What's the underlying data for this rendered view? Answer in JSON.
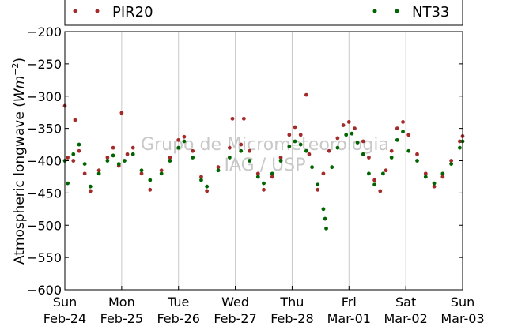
{
  "chart_data": {
    "type": "scatter",
    "title": "",
    "ylabel_prefix": "Atmospheric longwave (",
    "ylabel_unit": "Wm",
    "ylabel_exp": "−2",
    "ylabel_suffix": ")",
    "ylim": [
      -600,
      -200
    ],
    "yticks": [
      -600,
      -550,
      -500,
      -450,
      -400,
      -350,
      -300,
      -250,
      -200
    ],
    "ytick_labels": [
      "−600",
      "−550",
      "−500",
      "−450",
      "−400",
      "−350",
      "−300",
      "−250",
      "−200"
    ],
    "xlim": [
      0,
      7
    ],
    "xticks": [
      {
        "day": "Sun",
        "date": "Feb-24"
      },
      {
        "day": "Mon",
        "date": "Feb-25"
      },
      {
        "day": "Tue",
        "date": "Feb-26"
      },
      {
        "day": "Wed",
        "date": "Feb-27"
      },
      {
        "day": "Thu",
        "date": "Feb-28"
      },
      {
        "day": "Fri",
        "date": "Mar-01"
      },
      {
        "day": "Sat",
        "date": "Mar-02"
      },
      {
        "day": "Sun",
        "date": "Mar-03"
      }
    ],
    "grid": "vertical",
    "legend_placement": "top",
    "watermark": [
      "Grupo de Micrometeorologia",
      "IAG / USP"
    ],
    "series": [
      {
        "name": "PIR20",
        "color": "#a52a2a",
        "points": [
          [
            0.0,
            -315
          ],
          [
            0.05,
            -395
          ],
          [
            0.15,
            -400
          ],
          [
            0.18,
            -337
          ],
          [
            0.25,
            -385
          ],
          [
            0.35,
            -420
          ],
          [
            0.45,
            -447
          ],
          [
            0.6,
            -415
          ],
          [
            0.75,
            -395
          ],
          [
            0.85,
            -380
          ],
          [
            0.95,
            -408
          ],
          [
            1.0,
            -326
          ],
          [
            1.1,
            -390
          ],
          [
            1.2,
            -380
          ],
          [
            1.35,
            -420
          ],
          [
            1.5,
            -445
          ],
          [
            1.7,
            -415
          ],
          [
            1.85,
            -395
          ],
          [
            2.0,
            -368
          ],
          [
            2.1,
            -363
          ],
          [
            2.25,
            -385
          ],
          [
            2.4,
            -425
          ],
          [
            2.5,
            -447
          ],
          [
            2.7,
            -410
          ],
          [
            2.9,
            -380
          ],
          [
            2.95,
            -335
          ],
          [
            3.1,
            -375
          ],
          [
            3.15,
            -335
          ],
          [
            3.25,
            -385
          ],
          [
            3.4,
            -420
          ],
          [
            3.5,
            -445
          ],
          [
            3.65,
            -425
          ],
          [
            3.8,
            -395
          ],
          [
            3.95,
            -360
          ],
          [
            4.05,
            -348
          ],
          [
            4.15,
            -360
          ],
          [
            4.25,
            -298
          ],
          [
            4.3,
            -390
          ],
          [
            4.45,
            -445
          ],
          [
            4.55,
            -420
          ],
          [
            4.65,
            -385
          ],
          [
            4.8,
            -365
          ],
          [
            4.9,
            -345
          ],
          [
            5.0,
            -340
          ],
          [
            5.1,
            -350
          ],
          [
            5.25,
            -370
          ],
          [
            5.35,
            -395
          ],
          [
            5.45,
            -430
          ],
          [
            5.55,
            -447
          ],
          [
            5.65,
            -415
          ],
          [
            5.75,
            -385
          ],
          [
            5.85,
            -350
          ],
          [
            5.95,
            -340
          ],
          [
            6.05,
            -360
          ],
          [
            6.2,
            -390
          ],
          [
            6.35,
            -420
          ],
          [
            6.5,
            -440
          ],
          [
            6.65,
            -425
          ],
          [
            6.8,
            -400
          ],
          [
            6.95,
            -370
          ],
          [
            7.0,
            -362
          ]
        ]
      },
      {
        "name": "NT33",
        "color": "#006400",
        "points": [
          [
            0.0,
            -400
          ],
          [
            0.05,
            -435
          ],
          [
            0.15,
            -390
          ],
          [
            0.25,
            -375
          ],
          [
            0.35,
            -405
          ],
          [
            0.45,
            -440
          ],
          [
            0.6,
            -420
          ],
          [
            0.75,
            -400
          ],
          [
            0.85,
            -392
          ],
          [
            0.95,
            -405
          ],
          [
            1.05,
            -400
          ],
          [
            1.2,
            -390
          ],
          [
            1.35,
            -415
          ],
          [
            1.5,
            -430
          ],
          [
            1.7,
            -420
          ],
          [
            1.85,
            -400
          ],
          [
            2.0,
            -380
          ],
          [
            2.1,
            -370
          ],
          [
            2.25,
            -395
          ],
          [
            2.4,
            -430
          ],
          [
            2.5,
            -440
          ],
          [
            2.7,
            -415
          ],
          [
            2.9,
            -395
          ],
          [
            3.1,
            -385
          ],
          [
            3.25,
            -400
          ],
          [
            3.4,
            -425
          ],
          [
            3.5,
            -435
          ],
          [
            3.65,
            -420
          ],
          [
            3.8,
            -400
          ],
          [
            3.95,
            -378
          ],
          [
            4.05,
            -370
          ],
          [
            4.15,
            -375
          ],
          [
            4.25,
            -385
          ],
          [
            4.35,
            -410
          ],
          [
            4.45,
            -437
          ],
          [
            4.55,
            -475
          ],
          [
            4.58,
            -490
          ],
          [
            4.6,
            -505
          ],
          [
            4.7,
            -410
          ],
          [
            4.8,
            -380
          ],
          [
            4.95,
            -360
          ],
          [
            5.05,
            -358
          ],
          [
            5.15,
            -372
          ],
          [
            5.25,
            -390
          ],
          [
            5.35,
            -420
          ],
          [
            5.45,
            -437
          ],
          [
            5.6,
            -420
          ],
          [
            5.75,
            -395
          ],
          [
            5.85,
            -368
          ],
          [
            5.95,
            -355
          ],
          [
            6.05,
            -385
          ],
          [
            6.2,
            -400
          ],
          [
            6.35,
            -425
          ],
          [
            6.5,
            -435
          ],
          [
            6.65,
            -420
          ],
          [
            6.8,
            -405
          ],
          [
            6.95,
            -380
          ],
          [
            7.0,
            -370
          ]
        ]
      }
    ]
  }
}
